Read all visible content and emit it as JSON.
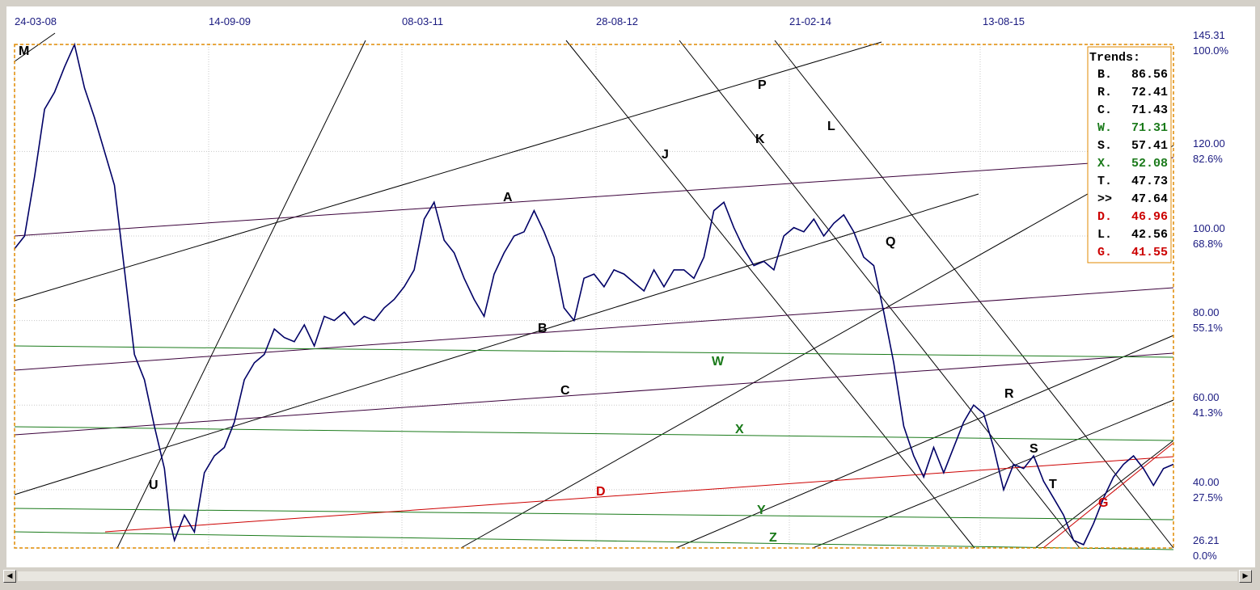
{
  "chart_data": {
    "type": "line",
    "x_tick_labels": [
      "24-03-08",
      "14-09-09",
      "08-03-11",
      "28-08-12",
      "21-02-14",
      "13-08-15"
    ],
    "y_axis": {
      "ticks": [
        {
          "price": "145.31",
          "pct": "100.0%"
        },
        {
          "price": "120.00",
          "pct": "82.6%"
        },
        {
          "price": "100.00",
          "pct": "68.8%"
        },
        {
          "price": "80.00",
          "pct": "55.1%"
        },
        {
          "price": "60.00",
          "pct": "41.3%"
        },
        {
          "price": "40.00",
          "pct": "27.5%"
        },
        {
          "price": "26.21",
          "pct": "0.0%"
        }
      ],
      "range": [
        26.21,
        145.31
      ]
    },
    "series": [
      {
        "color": "#000066",
        "points": [
          [
            0,
            97
          ],
          [
            0.5,
            100
          ],
          [
            1,
            114
          ],
          [
            1.5,
            130
          ],
          [
            2,
            134
          ],
          [
            2.5,
            140
          ],
          [
            3,
            145.3
          ],
          [
            3.5,
            135
          ],
          [
            4,
            128
          ],
          [
            4.5,
            120
          ],
          [
            5,
            112
          ],
          [
            5.5,
            92
          ],
          [
            6,
            72
          ],
          [
            6.5,
            66
          ],
          [
            7,
            55
          ],
          [
            7.5,
            45
          ],
          [
            7.8,
            32
          ],
          [
            8,
            28
          ],
          [
            8.5,
            34
          ],
          [
            9,
            30
          ],
          [
            9.5,
            44
          ],
          [
            10,
            48
          ],
          [
            10.5,
            50
          ],
          [
            11,
            56
          ],
          [
            11.5,
            66
          ],
          [
            12,
            70
          ],
          [
            12.5,
            72
          ],
          [
            13,
            78
          ],
          [
            13.5,
            76
          ],
          [
            14,
            75
          ],
          [
            14.5,
            79
          ],
          [
            15,
            74
          ],
          [
            15.5,
            81
          ],
          [
            16,
            80
          ],
          [
            16.5,
            82
          ],
          [
            17,
            79
          ],
          [
            17.5,
            81
          ],
          [
            18,
            80
          ],
          [
            18.5,
            83
          ],
          [
            19,
            85
          ],
          [
            19.5,
            88
          ],
          [
            20,
            92
          ],
          [
            20.5,
            104
          ],
          [
            21,
            108
          ],
          [
            21.5,
            99
          ],
          [
            22,
            96
          ],
          [
            22.5,
            90
          ],
          [
            23,
            85
          ],
          [
            23.5,
            81
          ],
          [
            24,
            91
          ],
          [
            24.5,
            96
          ],
          [
            25,
            100
          ],
          [
            25.5,
            101
          ],
          [
            26,
            106
          ],
          [
            26.5,
            101
          ],
          [
            27,
            95
          ],
          [
            27.5,
            83
          ],
          [
            28,
            80
          ],
          [
            28.5,
            90
          ],
          [
            29,
            91
          ],
          [
            29.5,
            88
          ],
          [
            30,
            92
          ],
          [
            30.5,
            91
          ],
          [
            31,
            89
          ],
          [
            31.5,
            87
          ],
          [
            32,
            92
          ],
          [
            32.5,
            88
          ],
          [
            33,
            92
          ],
          [
            33.5,
            92
          ],
          [
            34,
            90
          ],
          [
            34.5,
            95
          ],
          [
            35,
            106
          ],
          [
            35.5,
            108
          ],
          [
            36,
            102
          ],
          [
            36.5,
            97
          ],
          [
            37,
            93
          ],
          [
            37.5,
            94
          ],
          [
            38,
            92
          ],
          [
            38.5,
            100
          ],
          [
            39,
            102
          ],
          [
            39.5,
            101
          ],
          [
            40,
            104
          ],
          [
            40.5,
            100
          ],
          [
            41,
            103
          ],
          [
            41.5,
            105
          ],
          [
            42,
            101
          ],
          [
            42.5,
            95
          ],
          [
            43,
            93
          ],
          [
            43.5,
            82
          ],
          [
            44,
            70
          ],
          [
            44.5,
            55
          ],
          [
            45,
            48
          ],
          [
            45.5,
            43
          ],
          [
            46,
            50
          ],
          [
            46.5,
            44
          ],
          [
            47,
            50
          ],
          [
            47.5,
            56
          ],
          [
            48,
            60
          ],
          [
            48.5,
            58
          ],
          [
            49,
            50
          ],
          [
            49.5,
            40
          ],
          [
            50,
            46
          ],
          [
            50.5,
            45
          ],
          [
            51,
            48
          ],
          [
            51.5,
            42
          ],
          [
            52,
            38
          ],
          [
            52.5,
            34
          ],
          [
            53,
            28
          ],
          [
            53.5,
            27
          ],
          [
            54,
            32
          ],
          [
            54.5,
            38
          ],
          [
            55,
            43
          ],
          [
            55.5,
            46
          ],
          [
            56,
            48
          ],
          [
            56.5,
            45
          ],
          [
            57,
            41
          ],
          [
            57.5,
            45
          ],
          [
            58,
            46
          ]
        ]
      }
    ],
    "wave_labels": [
      {
        "text": "M",
        "color": "#000000"
      },
      {
        "text": "U",
        "color": "#000000"
      },
      {
        "text": "A",
        "color": "#000000"
      },
      {
        "text": "B",
        "color": "#000000"
      },
      {
        "text": "C",
        "color": "#000000"
      },
      {
        "text": "J",
        "color": "#000000"
      },
      {
        "text": "P",
        "color": "#000000"
      },
      {
        "text": "K",
        "color": "#000000"
      },
      {
        "text": "L",
        "color": "#000000"
      },
      {
        "text": "Q",
        "color": "#000000"
      },
      {
        "text": "W",
        "color": "#1a7a1a"
      },
      {
        "text": "X",
        "color": "#1a7a1a"
      },
      {
        "text": "R",
        "color": "#000000"
      },
      {
        "text": "S",
        "color": "#000000"
      },
      {
        "text": "T",
        "color": "#000000"
      },
      {
        "text": "D",
        "color": "#cc0000"
      },
      {
        "text": "Y",
        "color": "#1a7a1a"
      },
      {
        "text": "Z",
        "color": "#1a7a1a"
      },
      {
        "text": "G",
        "color": "#cc0000"
      }
    ],
    "trends": {
      "title": "Trends:",
      "items": [
        {
          "label": "B.",
          "value": "86.56",
          "color": "#000000"
        },
        {
          "label": "R.",
          "value": "72.41",
          "color": "#000000"
        },
        {
          "label": "C.",
          "value": "71.43",
          "color": "#000000"
        },
        {
          "label": "W.",
          "value": "71.31",
          "color": "#1a7a1a"
        },
        {
          "label": "S.",
          "value": "57.41",
          "color": "#000000"
        },
        {
          "label": "X.",
          "value": "52.08",
          "color": "#1a7a1a"
        },
        {
          "label": "T.",
          "value": "47.73",
          "color": "#000000"
        },
        {
          "label": ">>",
          "value": "47.64",
          "color": "#000000"
        },
        {
          "label": "D.",
          "value": "46.96",
          "color": "#cc0000"
        },
        {
          "label": "L.",
          "value": "42.56",
          "color": "#000000"
        },
        {
          "label": "G.",
          "value": "41.55",
          "color": "#cc0000"
        }
      ]
    },
    "colors": {
      "background": "#ffffff",
      "frame_border": "#e08a00",
      "price_line": "#000066",
      "trendline_dark": "#000000",
      "trendline_purple": "#3a003a",
      "trendline_green": "#1a7a1a",
      "trendline_red": "#cc0000",
      "gridline": "#c8c8c8"
    }
  },
  "scrollbar": {
    "left_icon": "scroll-left-arrow-icon",
    "right_icon": "scroll-right-arrow-icon"
  }
}
